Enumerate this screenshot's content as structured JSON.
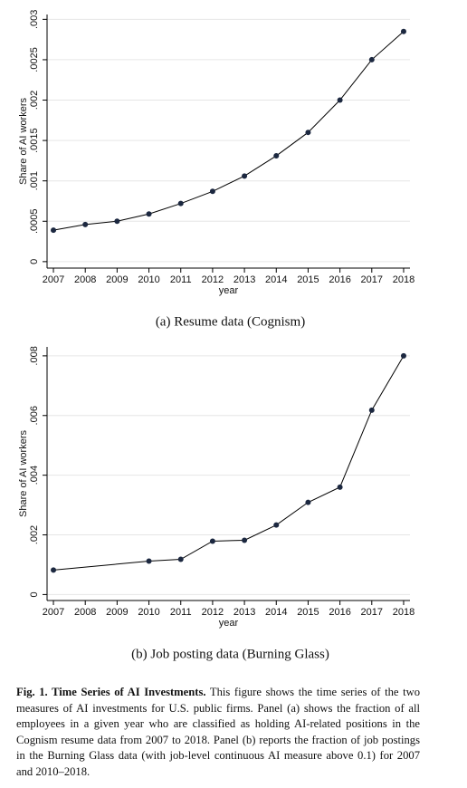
{
  "chart_data": [
    {
      "type": "line",
      "ylabel": "Share of AI workers",
      "xlabel": "year",
      "subtitle": "(a) Resume data (Cognism)",
      "x": [
        2007,
        2008,
        2009,
        2010,
        2011,
        2012,
        2013,
        2014,
        2015,
        2016,
        2017,
        2018
      ],
      "values": [
        0.00039,
        0.00046,
        0.0005,
        0.00059,
        0.00072,
        0.00087,
        0.00106,
        0.00131,
        0.0016,
        0.002,
        0.0025,
        0.00285
      ],
      "color": "#1c2840",
      "grid": true,
      "xlim": [
        2006.8,
        2018.2
      ],
      "xticks": [
        2007,
        2008,
        2009,
        2010,
        2011,
        2012,
        2013,
        2014,
        2015,
        2016,
        2017,
        2018
      ],
      "ylim": [
        -8e-05,
        0.00306
      ],
      "yticks": [
        0,
        {
          "value": 0.0005,
          "label": ".0005"
        },
        {
          "value": 0.001,
          "label": ".001"
        },
        {
          "value": 0.0015,
          "label": ".0015"
        },
        {
          "value": 0.002,
          "label": ".002"
        },
        {
          "value": 0.0025,
          "label": ".0025"
        },
        {
          "value": 0.003,
          "label": ".003"
        }
      ]
    },
    {
      "type": "line",
      "ylabel": "Share of AI workers",
      "xlabel": "year",
      "subtitle": "(b) Job posting data (Burning Glass)",
      "x": [
        2007,
        2010,
        2011,
        2012,
        2013,
        2014,
        2015,
        2016,
        2017,
        2018
      ],
      "values": [
        0.00082,
        0.00112,
        0.00118,
        0.00179,
        0.00182,
        0.00233,
        0.00309,
        0.0036,
        0.00618,
        0.008
      ],
      "color": "#1c2840",
      "grid": true,
      "xlim": [
        2006.8,
        2018.2
      ],
      "xticks": [
        2007,
        2008,
        2009,
        2010,
        2011,
        2012,
        2013,
        2014,
        2015,
        2016,
        2017,
        2018
      ],
      "ylim": [
        -0.0002,
        0.0083
      ],
      "yticks": [
        0,
        {
          "value": 0.002,
          "label": ".002"
        },
        {
          "value": 0.004,
          "label": ".004"
        },
        {
          "value": 0.006,
          "label": ".006"
        },
        {
          "value": 0.008,
          "label": ".008"
        }
      ]
    }
  ],
  "caption": {
    "title": "Fig. 1. Time Series of AI Investments.",
    "text": "This figure shows the time series of the two measures of AI investments for U.S. public firms. Panel (a) shows the fraction of all employees in a given year who are classified as holding AI-related positions in the Cognism resume data from 2007 to 2018. Panel (b) reports the fraction of job postings in the Burning Glass data (with job-level continuous AI measure above 0.1) for 2007 and 2010–2018."
  }
}
